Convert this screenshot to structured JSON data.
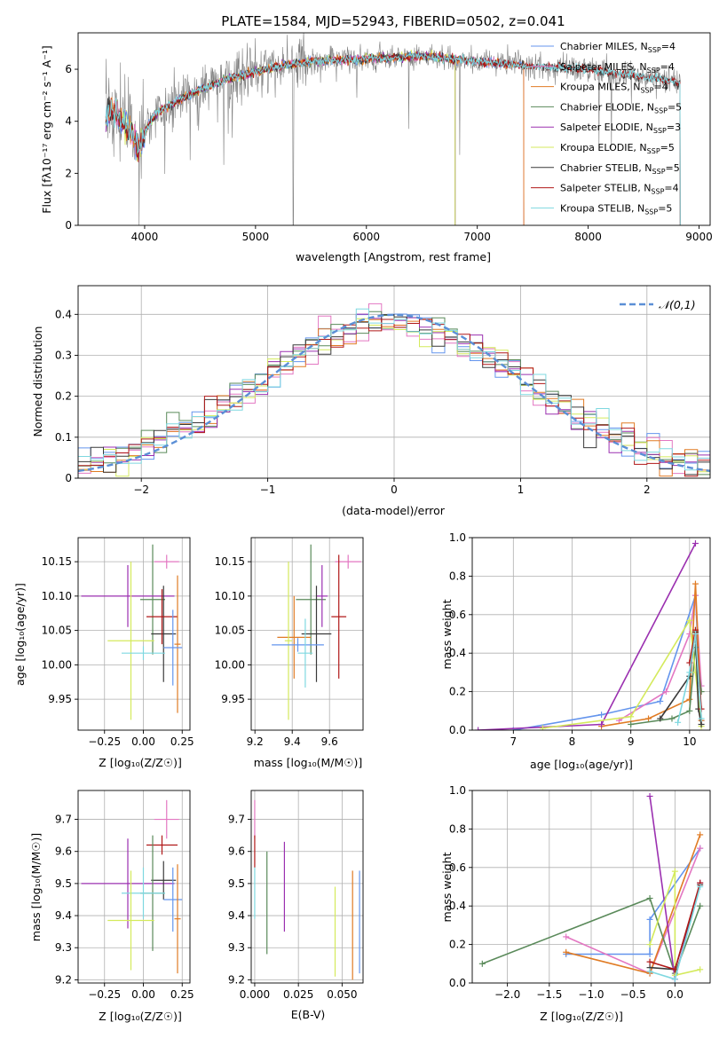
{
  "colors": {
    "chabrier_miles": "#6495ed",
    "salpeter_miles": "#e377c2",
    "kroupa_miles": "#e07b24",
    "chabrier_elodie": "#5a8a5a",
    "salpeter_elodie": "#9b30b0",
    "kroupa_elodie": "#d4ea5c",
    "chabrier_stelib": "#3a3a3a",
    "salpeter_stelib": "#b01818",
    "kroupa_stelib": "#7fd8e0",
    "data": "#808080",
    "normal": "#5b8fd6",
    "grid": "#b0b0b0"
  },
  "legend_entries": [
    {
      "key": "chabrier_miles",
      "text": "Chabrier MILES, N",
      "sub": "SSP",
      "tail": "=4"
    },
    {
      "key": "salpeter_miles",
      "text": "Salpeter MILES, N",
      "sub": "SSP",
      "tail": "=4"
    },
    {
      "key": "kroupa_miles",
      "text": "Kroupa MILES, N",
      "sub": "SSP",
      "tail": "=4"
    },
    {
      "key": "chabrier_elodie",
      "text": "Chabrier ELODIE, N",
      "sub": "SSP",
      "tail": "=5"
    },
    {
      "key": "salpeter_elodie",
      "text": "Salpeter ELODIE, N",
      "sub": "SSP",
      "tail": "=3"
    },
    {
      "key": "kroupa_elodie",
      "text": "Kroupa ELODIE, N",
      "sub": "SSP",
      "tail": "=5"
    },
    {
      "key": "chabrier_stelib",
      "text": "Chabrier STELIB, N",
      "sub": "SSP",
      "tail": "=5"
    },
    {
      "key": "salpeter_stelib",
      "text": "Salpeter STELIB, N",
      "sub": "SSP",
      "tail": "=4"
    },
    {
      "key": "kroupa_stelib",
      "text": "Kroupa STELIB, N",
      "sub": "SSP",
      "tail": "=5"
    }
  ],
  "chart_data": [
    {
      "id": "spectrum",
      "type": "line",
      "title": "PLATE=1584, MJD=52943, FIBERID=0502, z=0.041",
      "xlabel": "wavelength [Angstrom, rest frame]",
      "ylabel": "Flux [fλ10⁻¹⁷ erg cm⁻² s⁻¹ A⁻¹]",
      "xlim": [
        3400,
        9100
      ],
      "ylim": [
        0,
        7.4
      ],
      "xticks": [
        4000,
        5000,
        6000,
        7000,
        8000,
        9000
      ],
      "yticks": [
        0,
        2,
        4,
        6
      ],
      "continuum_knots": [
        [
          3650,
          4.1
        ],
        [
          3700,
          4.5
        ],
        [
          3800,
          4.0
        ],
        [
          3900,
          3.5
        ],
        [
          3940,
          2.8
        ],
        [
          4000,
          3.6
        ],
        [
          4100,
          4.3
        ],
        [
          4300,
          4.8
        ],
        [
          4500,
          5.2
        ],
        [
          4800,
          5.7
        ],
        [
          5000,
          5.9
        ],
        [
          5200,
          6.1
        ],
        [
          5500,
          6.3
        ],
        [
          6000,
          6.4
        ],
        [
          6500,
          6.5
        ],
        [
          7000,
          6.3
        ],
        [
          7500,
          6.1
        ],
        [
          8000,
          6.0
        ],
        [
          8500,
          5.7
        ],
        [
          8830,
          5.5
        ]
      ],
      "model_range": {
        "miles": [
          3650,
          7420
        ],
        "elodie": [
          3650,
          6800
        ],
        "stelib": [
          3650,
          8830
        ]
      },
      "data_range": [
        3650,
        8830
      ],
      "grid": false,
      "legend": "right"
    },
    {
      "id": "residuals",
      "type": "histogram",
      "xlabel": "(data-model)/error",
      "ylabel": "Normed distribution",
      "xlim": [
        -2.5,
        2.5
      ],
      "ylim": [
        0,
        0.47
      ],
      "xticks": [
        -2,
        -1,
        0,
        1,
        2
      ],
      "yticks": [
        0,
        0.1,
        0.2,
        0.3,
        0.4
      ],
      "bin_width": 0.1,
      "normal_label": "𝒩(0,1)",
      "series_keys": [
        "chabrier_miles",
        "salpeter_miles",
        "kroupa_miles",
        "chabrier_elodie",
        "salpeter_elodie",
        "kroupa_elodie",
        "chabrier_stelib",
        "salpeter_stelib",
        "kroupa_stelib"
      ],
      "grid": true,
      "legend": "top-right"
    },
    {
      "id": "age_vs_Z",
      "type": "errorbar",
      "xlabel": "Z [log₁₀(Z/Z☉)]",
      "ylabel": "age  [log₁₀(age/yr)]",
      "xlim": [
        -0.42,
        0.3
      ],
      "ylim": [
        9.905,
        10.185
      ],
      "xticks": [
        -0.25,
        0,
        0.25
      ],
      "xticklabels": [
        "−0.25",
        "0.00",
        "0.25"
      ],
      "yticks": [
        9.95,
        10,
        10.05,
        10.1,
        10.15
      ],
      "yticklabels": [
        "9.95",
        "10.00",
        "10.05",
        "10.10",
        "10.15"
      ],
      "points": [
        {
          "key": "salpeter_miles",
          "x": 0.15,
          "xerr": 0.08,
          "y": 10.15,
          "yerr": 0.01
        },
        {
          "key": "chabrier_elodie",
          "x": 0.06,
          "xerr": 0.08,
          "y": 10.095,
          "yerr": 0.08
        },
        {
          "key": "salpeter_elodie",
          "x": -0.1,
          "xerr": 0.3,
          "y": 10.1,
          "yerr": 0.045
        },
        {
          "key": "chabrier_stelib",
          "x": 0.13,
          "xerr": 0.08,
          "y": 10.045,
          "yerr": 0.07
        },
        {
          "key": "salpeter_stelib",
          "x": 0.12,
          "xerr": 0.1,
          "y": 10.07,
          "yerr": 0.04
        },
        {
          "key": "kroupa_elodie",
          "x": -0.08,
          "xerr": 0.15,
          "y": 10.035,
          "yerr": 0.115
        },
        {
          "key": "kroupa_miles",
          "x": 0.22,
          "xerr": 0.02,
          "y": 10.03,
          "yerr": 0.1
        },
        {
          "key": "chabrier_miles",
          "x": 0.19,
          "xerr": 0.06,
          "y": 10.025,
          "yerr": 0.055
        },
        {
          "key": "kroupa_stelib",
          "x": 0.0,
          "xerr": 0.14,
          "y": 10.017,
          "yerr": 0.01
        }
      ],
      "grid": true
    },
    {
      "id": "age_vs_mass",
      "type": "errorbar",
      "xlabel": "mass [log₁₀(M/M☉)]",
      "xlim": [
        9.18,
        9.78
      ],
      "ylim": [
        9.905,
        10.185
      ],
      "xticks": [
        9.2,
        9.4,
        9.6
      ],
      "xticklabels": [
        "9.2",
        "9.4",
        "9.6"
      ],
      "yticks": [
        9.95,
        10,
        10.05,
        10.1,
        10.15
      ],
      "yticklabels": [
        "9.95",
        "10.00",
        "10.05",
        "10.10",
        "10.15"
      ],
      "points": [
        {
          "key": "salpeter_miles",
          "x": 9.7,
          "xerr": 0.07,
          "y": 10.15,
          "yerr": 0.01
        },
        {
          "key": "salpeter_stelib",
          "x": 9.65,
          "xerr": 0.04,
          "y": 10.07,
          "yerr": 0.09
        },
        {
          "key": "chabrier_elodie",
          "x": 9.5,
          "xerr": 0.08,
          "y": 10.095,
          "yerr": 0.08
        },
        {
          "key": "salpeter_elodie",
          "x": 9.56,
          "xerr": 0.03,
          "y": 10.1,
          "yerr": 0.045
        },
        {
          "key": "chabrier_stelib",
          "x": 9.53,
          "xerr": 0.08,
          "y": 10.045,
          "yerr": 0.07
        },
        {
          "key": "kroupa_miles",
          "x": 9.41,
          "xerr": 0.09,
          "y": 10.04,
          "yerr": 0.06
        },
        {
          "key": "kroupa_elodie",
          "x": 9.38,
          "xerr": 0.02,
          "y": 10.035,
          "yerr": 0.115
        },
        {
          "key": "chabrier_miles",
          "x": 9.43,
          "xerr": 0.14,
          "y": 10.029,
          "yerr": 0.01
        },
        {
          "key": "kroupa_stelib",
          "x": 9.47,
          "xerr": 0.04,
          "y": 10.017,
          "yerr": 0.05
        }
      ],
      "grid": true
    },
    {
      "id": "mass_weight_vs_age",
      "type": "line",
      "xlabel": "age  [log₁₀(age/yr)]",
      "ylabel": "mass weight",
      "xlim": [
        6.3,
        10.35
      ],
      "ylim": [
        0,
        1
      ],
      "xticks": [
        7,
        8,
        9,
        10
      ],
      "yticks": [
        0,
        0.2,
        0.4,
        0.6,
        0.8,
        1.0
      ],
      "yticklabels": [
        "0.0",
        "0.2",
        "0.4",
        "0.6",
        "0.8",
        "1.0"
      ],
      "series": [
        {
          "key": "chabrier_miles",
          "points": [
            [
              7.0,
              0.0
            ],
            [
              8.5,
              0.08
            ],
            [
              9.5,
              0.15
            ],
            [
              10.1,
              0.7
            ],
            [
              10.2,
              0.05
            ]
          ]
        },
        {
          "key": "salpeter_miles",
          "points": [
            [
              8.8,
              0.05
            ],
            [
              9.6,
              0.2
            ],
            [
              10.0,
              0.5
            ],
            [
              10.1,
              0.7
            ],
            [
              10.2,
              0.23
            ]
          ]
        },
        {
          "key": "kroupa_miles",
          "points": [
            [
              8.5,
              0.02
            ],
            [
              9.3,
              0.06
            ],
            [
              10.0,
              0.16
            ],
            [
              10.1,
              0.76
            ],
            [
              10.2,
              0.05
            ]
          ]
        },
        {
          "key": "chabrier_elodie",
          "points": [
            [
              9.0,
              0.03
            ],
            [
              9.7,
              0.06
            ],
            [
              10.0,
              0.1
            ],
            [
              10.1,
              0.43
            ],
            [
              10.2,
              0.2
            ]
          ]
        },
        {
          "key": "salpeter_elodie",
          "points": [
            [
              6.4,
              0.0
            ],
            [
              8.5,
              0.03
            ],
            [
              10.1,
              0.97
            ]
          ]
        },
        {
          "key": "kroupa_elodie",
          "points": [
            [
              7.5,
              0.01
            ],
            [
              9.0,
              0.07
            ],
            [
              10.0,
              0.57
            ],
            [
              10.1,
              0.3
            ],
            [
              10.2,
              0.02
            ]
          ]
        },
        {
          "key": "chabrier_stelib",
          "points": [
            [
              9.5,
              0.06
            ],
            [
              10.0,
              0.28
            ],
            [
              10.1,
              0.51
            ],
            [
              10.15,
              0.11
            ],
            [
              10.2,
              0.03
            ]
          ]
        },
        {
          "key": "salpeter_stelib",
          "points": [
            [
              10.0,
              0.35
            ],
            [
              10.1,
              0.52
            ],
            [
              10.2,
              0.11
            ]
          ]
        },
        {
          "key": "kroupa_stelib",
          "points": [
            [
              9.8,
              0.04
            ],
            [
              10.0,
              0.3
            ],
            [
              10.1,
              0.5
            ],
            [
              10.2,
              0.06
            ]
          ]
        }
      ],
      "grid": true
    },
    {
      "id": "mass_vs_Z",
      "type": "errorbar",
      "xlabel": "Z [log₁₀(Z/Z☉)]",
      "ylabel": "mass [log₁₀(M/M☉)]",
      "xlim": [
        -0.42,
        0.3
      ],
      "ylim": [
        9.19,
        9.79
      ],
      "xticks": [
        -0.25,
        0,
        0.25
      ],
      "xticklabels": [
        "−0.25",
        "0.00",
        "0.25"
      ],
      "yticks": [
        9.2,
        9.3,
        9.4,
        9.5,
        9.6,
        9.7
      ],
      "yticklabels": [
        "9.2",
        "9.3",
        "9.4",
        "9.5",
        "9.6",
        "9.7"
      ],
      "points": [
        {
          "key": "salpeter_miles",
          "x": 0.15,
          "xerr": 0.08,
          "y": 9.7,
          "yerr": 0.06
        },
        {
          "key": "salpeter_stelib",
          "x": 0.12,
          "xerr": 0.1,
          "y": 9.62,
          "yerr": 0.03
        },
        {
          "key": "salpeter_elodie",
          "x": -0.1,
          "xerr": 0.3,
          "y": 9.5,
          "yerr": 0.14
        },
        {
          "key": "chabrier_stelib",
          "x": 0.13,
          "xerr": 0.08,
          "y": 9.51,
          "yerr": 0.06
        },
        {
          "key": "chabrier_elodie",
          "x": 0.06,
          "xerr": 0.08,
          "y": 9.47,
          "yerr": 0.18
        },
        {
          "key": "kroupa_stelib",
          "x": 0.0,
          "xerr": 0.14,
          "y": 9.47,
          "yerr": 0.08
        },
        {
          "key": "chabrier_miles",
          "x": 0.19,
          "xerr": 0.06,
          "y": 9.45,
          "yerr": 0.1
        },
        {
          "key": "kroupa_miles",
          "x": 0.22,
          "xerr": 0.02,
          "y": 9.39,
          "yerr": 0.17
        },
        {
          "key": "kroupa_elodie",
          "x": -0.08,
          "xerr": 0.15,
          "y": 9.385,
          "yerr": 0.155
        }
      ],
      "grid": true
    },
    {
      "id": "mass_vs_ebv",
      "type": "errorbar",
      "xlabel": "E(B-V)",
      "xlim": [
        -0.002,
        0.062
      ],
      "ylim": [
        9.19,
        9.79
      ],
      "xticks": [
        0.0,
        0.025,
        0.05
      ],
      "xticklabels": [
        "0.000",
        "0.025",
        "0.050"
      ],
      "yticks": [
        9.2,
        9.3,
        9.4,
        9.5,
        9.6,
        9.7
      ],
      "yticklabels": [
        "9.2",
        "9.3",
        "9.4",
        "9.5",
        "9.6",
        "9.7"
      ],
      "points": [
        {
          "key": "salpeter_miles",
          "x": 0.0,
          "xerr": 0,
          "y": 9.7,
          "yerr": 0.06
        },
        {
          "key": "salpeter_stelib",
          "x": 0.0,
          "xerr": 0,
          "y": 9.6,
          "yerr": 0.05
        },
        {
          "key": "kroupa_stelib",
          "x": 0.0,
          "xerr": 0,
          "y": 9.47,
          "yerr": 0.08
        },
        {
          "key": "chabrier_elodie",
          "x": 0.007,
          "xerr": 0,
          "y": 9.44,
          "yerr": 0.16
        },
        {
          "key": "salpeter_elodie",
          "x": 0.017,
          "xerr": 0,
          "y": 9.49,
          "yerr": 0.14
        },
        {
          "key": "kroupa_elodie",
          "x": 0.046,
          "xerr": 0,
          "y": 9.35,
          "yerr": 0.14
        },
        {
          "key": "kroupa_miles",
          "x": 0.056,
          "xerr": 0,
          "y": 9.37,
          "yerr": 0.17
        },
        {
          "key": "chabrier_miles",
          "x": 0.06,
          "xerr": 0,
          "y": 9.38,
          "yerr": 0.16
        }
      ],
      "grid": true
    },
    {
      "id": "mass_weight_vs_Z",
      "type": "line",
      "xlabel": "Z [log₁₀(Z/Z☉)]",
      "ylabel": "mass weight",
      "xlim": [
        -2.42,
        0.42
      ],
      "ylim": [
        0,
        1
      ],
      "xticks": [
        -2,
        -1.5,
        -1,
        -0.5,
        0
      ],
      "xticklabels": [
        "−2.0",
        "−1.5",
        "−1.0",
        "−0.5",
        "0.0"
      ],
      "yticks": [
        0,
        0.2,
        0.4,
        0.6,
        0.8,
        1.0
      ],
      "yticklabels": [
        "0.0",
        "0.2",
        "0.4",
        "0.6",
        "0.8",
        "1.0"
      ],
      "series": [
        {
          "key": "chabrier_miles",
          "points": [
            [
              -1.3,
              0.15
            ],
            [
              -0.3,
              0.15
            ],
            [
              -0.3,
              0.33
            ],
            [
              0.3,
              0.7
            ]
          ]
        },
        {
          "key": "salpeter_miles",
          "points": [
            [
              -1.3,
              0.24
            ],
            [
              -0.3,
              0.05
            ],
            [
              0.3,
              0.7
            ]
          ]
        },
        {
          "key": "kroupa_miles",
          "points": [
            [
              -1.3,
              0.16
            ],
            [
              -0.3,
              0.05
            ],
            [
              0.3,
              0.77
            ]
          ]
        },
        {
          "key": "chabrier_elodie",
          "points": [
            [
              -2.3,
              0.1
            ],
            [
              -0.3,
              0.44
            ],
            [
              0.0,
              0.05
            ],
            [
              0.3,
              0.4
            ]
          ]
        },
        {
          "key": "salpeter_elodie",
          "points": [
            [
              -0.3,
              0.97
            ],
            [
              0.0,
              0.02
            ],
            [
              0.3,
              0.52
            ]
          ]
        },
        {
          "key": "kroupa_elodie",
          "points": [
            [
              -0.3,
              0.2
            ],
            [
              0.0,
              0.58
            ],
            [
              0.0,
              0.04
            ],
            [
              0.3,
              0.07
            ]
          ]
        },
        {
          "key": "chabrier_stelib",
          "points": [
            [
              -0.3,
              0.08
            ],
            [
              0.0,
              0.07
            ],
            [
              0.3,
              0.51
            ]
          ]
        },
        {
          "key": "salpeter_stelib",
          "points": [
            [
              -0.3,
              0.11
            ],
            [
              0.0,
              0.07
            ],
            [
              0.3,
              0.52
            ]
          ]
        },
        {
          "key": "kroupa_stelib",
          "points": [
            [
              -0.3,
              0.06
            ],
            [
              0.0,
              0.02
            ],
            [
              0.3,
              0.5
            ]
          ]
        }
      ],
      "grid": true
    }
  ]
}
